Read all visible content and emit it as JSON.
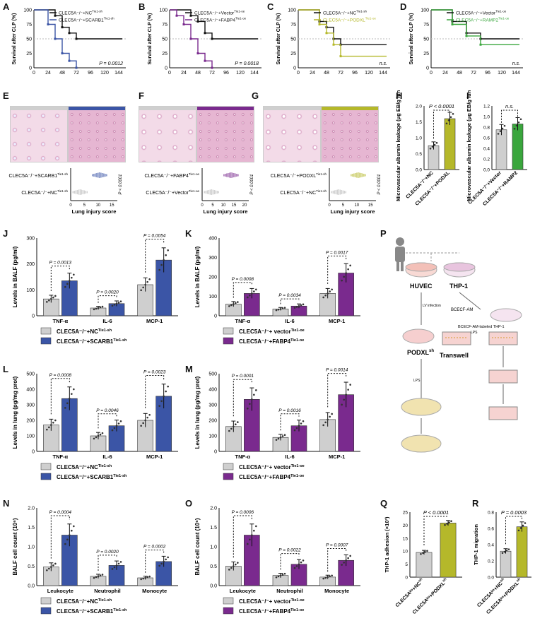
{
  "colors": {
    "gray": "#cfcfcf",
    "blue": "#3b55a6",
    "purple": "#7a2a8e",
    "olive": "#b5b82a",
    "green": "#3aa63d",
    "black": "#111111"
  },
  "panels": {
    "A": {
      "label": "A",
      "ylabel": "Survival after CLP (%)",
      "legend": [
        "CLEC5A⁻/⁻+NC",
        "CLEC5A⁻/⁻+SCARB1"
      ],
      "legend_sup": [
        "Tie1-sh",
        "Tie1-sh"
      ],
      "p": "P = 0.0012",
      "xticks": [
        "0",
        "24",
        "48",
        "72",
        "96",
        "120",
        "144"
      ],
      "yticks": [
        "0",
        "25",
        "50",
        "75",
        "100"
      ]
    },
    "B": {
      "label": "B",
      "ylabel": "Survival after CLP (%)",
      "legend": [
        "CLEC5A⁻/⁻+Vector",
        "CLEC5A⁻/⁻+FABP4"
      ],
      "legend_sup": [
        "Tie1-oe",
        "Tie1-oe"
      ],
      "p": "P = 0.0018",
      "xticks": [
        "0",
        "24",
        "48",
        "72",
        "96",
        "120",
        "144"
      ],
      "yticks": [
        "0",
        "25",
        "50",
        "75",
        "100"
      ]
    },
    "C": {
      "label": "C",
      "ylabel": "Survival after CLP (%)",
      "legend": [
        "CLEC5A⁻/⁻+NC",
        "CLEC5A⁻/⁻+PODXL"
      ],
      "legend_sup": [
        "Tie1-sh",
        "Tie1-oe"
      ],
      "p": "n.s.",
      "xticks": [
        "0",
        "24",
        "48",
        "72",
        "96",
        "120",
        "144"
      ],
      "yticks": [
        "0",
        "25",
        "50",
        "75",
        "100"
      ]
    },
    "D": {
      "label": "D",
      "ylabel": "Survival after CLP (%)",
      "legend": [
        "CLEC5A⁻/⁻+Vector",
        "CLEC5A⁻/⁻+RAMP2"
      ],
      "legend_sup": [
        "Tie1-oe",
        "Tie1-oe"
      ],
      "p": "n.s.",
      "xticks": [
        "0",
        "24",
        "48",
        "72",
        "96",
        "120",
        "144"
      ],
      "yticks": [
        "0",
        "25",
        "50",
        "75",
        "100"
      ]
    },
    "E": {
      "label": "E",
      "rows": [
        "CLEC5A⁻/⁻+SCARB1",
        "CLEC5A⁻/⁻+NC"
      ],
      "sups": [
        "Tie1-sh",
        "Tie1-sh"
      ],
      "xlabel": "Lung injury score",
      "p": "P < 0.0001",
      "xticks": [
        "0",
        "5",
        "10",
        "15"
      ]
    },
    "F": {
      "label": "F",
      "rows": [
        "CLEC5A⁻/⁻+FABP4",
        "CLEC5A⁻/⁻+Vector"
      ],
      "sups": [
        "Tie1-oe",
        "Tie1-oe"
      ],
      "xlabel": "Lung injury score",
      "p": "P < 0.0001",
      "xticks": [
        "0",
        "5",
        "10",
        "15",
        "20"
      ]
    },
    "G": {
      "label": "G",
      "rows": [
        "CLEC5A⁻/⁻+PODXL",
        "CLEC5A⁻/⁻+NC"
      ],
      "sups": [
        "Tie1-sh",
        "Tie1-sh"
      ],
      "xlabel": "Lung injury score",
      "p": "P < 0.0001",
      "xticks": [
        "0",
        "5",
        "10",
        "15"
      ]
    },
    "H": {
      "label": "H",
      "ylabel": "Microvascular albumin leakage (μg EB/g lung/min)",
      "p": "P < 0.0001",
      "xcats": [
        "CLEC5A⁻/⁻+NC",
        "CLEC5A⁻/⁻+PODXL"
      ],
      "yticks": [
        "0.0",
        "0.5",
        "1.0",
        "1.5",
        "2.0"
      ]
    },
    "I": {
      "label": "I",
      "ylabel": "Microvascular albumin leakage (μg EB/g lung/min)",
      "p": "n.s.",
      "xcats": [
        "CLEC5A⁻/⁻+Vector",
        "CLEC5A⁻/⁻+RAMP2"
      ],
      "yticks": [
        "0.0",
        "0.2",
        "0.4",
        "0.6",
        "0.8",
        "1.0",
        "1.2"
      ]
    },
    "J": {
      "label": "J",
      "ylabel": "Levels in BALF (pg/ml)",
      "yticks": [
        "0",
        "100",
        "200",
        "300"
      ],
      "cats": [
        "TNF-α",
        "IL-6",
        "MCP-1"
      ],
      "ps": [
        "P = 0.0013",
        "P = 0.0020",
        "P = 0.0054"
      ],
      "legend": [
        "CLEC5A⁻/⁻+NC",
        "CLEC5A⁻/⁻+SCARB1"
      ],
      "legend_sup": [
        "Tie1-sh",
        "Tie1-sh"
      ]
    },
    "K": {
      "label": "K",
      "ylabel": "Levels in BALF (pg/ml)",
      "yticks": [
        "0",
        "100",
        "200",
        "300",
        "400"
      ],
      "cats": [
        "TNF-α",
        "IL-6",
        "MCP-1"
      ],
      "ps": [
        "P = 0.0008",
        "P = 0.0034",
        "P = 0.0017"
      ],
      "legend": [
        "CLEC5A⁻/⁻+ vector",
        "CLEC5A⁻/⁻+FABP4"
      ],
      "legend_sup": [
        "Tie1-oe",
        "Tie1-oe"
      ]
    },
    "L": {
      "label": "L",
      "ylabel": "Levels in lung (pg/mg prot)",
      "yticks": [
        "0",
        "100",
        "200",
        "300",
        "400",
        "500"
      ],
      "cats": [
        "TNF-α",
        "IL-6",
        "MCP-1"
      ],
      "ps": [
        "P = 0.0008",
        "P = 0.0046",
        "P = 0.0023"
      ],
      "legend": [
        "CLEC5A⁻/⁻+NC",
        "CLEC5A⁻/⁻+SCARB1"
      ],
      "legend_sup": [
        "Tie1-sh",
        "Tie1-sh"
      ]
    },
    "M": {
      "label": "M",
      "ylabel": "Levels in lung (pg/mg prot)",
      "yticks": [
        "0",
        "100",
        "200",
        "300",
        "400",
        "500"
      ],
      "cats": [
        "TNF-α",
        "IL-6",
        "MCP-1"
      ],
      "ps": [
        "P = 0.0001",
        "P = 0.0016",
        "P = 0.0014"
      ],
      "legend": [
        "CLEC5A⁻/⁻+ vector",
        "CLEC5A⁻/⁻+FABP4"
      ],
      "legend_sup": [
        "Tie1-oe",
        "Tie1-oe"
      ]
    },
    "N": {
      "label": "N",
      "ylabel": "BALF cell count (10⁶)",
      "yticks": [
        "0.0",
        "0.5",
        "1.0",
        "1.5",
        "2.0"
      ],
      "cats": [
        "Leukocyte",
        "Neutrophil",
        "Monocyte"
      ],
      "ps": [
        "P = 0.0004",
        "P = 0.0020",
        "P = 0.0002"
      ],
      "legend": [
        "CLEC5A⁻/⁻+NC",
        "CLEC5A⁻/⁻+SCARB1"
      ],
      "legend_sup": [
        "Tie1-sh",
        "Tie1-sh"
      ]
    },
    "O": {
      "label": "O",
      "ylabel": "BALF cell count (10⁶)",
      "yticks": [
        "0.0",
        "0.5",
        "1.0",
        "1.5",
        "2.0"
      ],
      "cats": [
        "Leukocyte",
        "Neutrophil",
        "Monocyte"
      ],
      "ps": [
        "P = 0.0006",
        "P = 0.0022",
        "P = 0.0007"
      ],
      "legend": [
        "CLEC5A⁻/⁻+ vector",
        "CLEC5A⁻/⁻+FABP4"
      ],
      "legend_sup": [
        "Tie1-oe",
        "Tie1-oe"
      ]
    },
    "P": {
      "label": "P",
      "huvec": "HUVEC",
      "thp1": "THP-1",
      "lv": "LV infection",
      "bcecf": "BCECF-AM",
      "bcecf_labeled": "BCECF-AM-labeled THP-1",
      "podxl": "PODXL",
      "podxl_sup": "sh",
      "transwell": "Transwell",
      "lps": "LPS"
    },
    "Q": {
      "label": "Q",
      "ylabel": "THP-1 adhesion (×10³)",
      "p": "P < 0.0001",
      "yticks": [
        "0",
        "5",
        "10",
        "15",
        "20",
        "25"
      ],
      "xcats": [
        "CLEC5Aᵏᵒ+NC",
        "CLEC5Aᵏᵒ+PODXL"
      ],
      "xsup": "sh"
    },
    "R": {
      "label": "R",
      "ylabel": "THP-1 migration",
      "p": "P = 0.0003",
      "yticks": [
        "0.0",
        "0.2",
        "0.4",
        "0.6",
        "0.8"
      ],
      "xcats": [
        "CLEC5Aᵏᵒ+NC",
        "CLEC5Aᵏᵒ+PODXL"
      ],
      "xsup": "sh"
    }
  },
  "chart_data": [
    {
      "type": "line",
      "panel": "A",
      "title": "",
      "xlabel": "",
      "ylabel": "Survival after CLP (%)",
      "xlim": [
        0,
        156
      ],
      "ylim": [
        0,
        100
      ],
      "series": [
        {
          "name": "CLEC5A-/-+NC Tie1-sh",
          "color": "#111111",
          "x": [
            0,
            36,
            36,
            48,
            48,
            60,
            60,
            72,
            72,
            150
          ],
          "y": [
            100,
            100,
            90,
            90,
            70,
            70,
            60,
            60,
            50,
            50
          ]
        },
        {
          "name": "CLEC5A-/-+SCARB1 Tie1-sh",
          "color": "#3b55a6",
          "x": [
            0,
            24,
            24,
            36,
            36,
            48,
            48,
            60,
            60,
            72,
            72
          ],
          "y": [
            100,
            100,
            75,
            75,
            50,
            50,
            25,
            25,
            12,
            12,
            0
          ]
        }
      ],
      "p": "P = 0.0012"
    },
    {
      "type": "line",
      "panel": "B",
      "title": "",
      "xlabel": "",
      "ylabel": "Survival after CLP (%)",
      "xlim": [
        0,
        156
      ],
      "ylim": [
        0,
        100
      ],
      "series": [
        {
          "name": "CLEC5A-/-+Vector Tie1-oe",
          "color": "#111111",
          "x": [
            0,
            36,
            36,
            48,
            48,
            60,
            60,
            72,
            72,
            150
          ],
          "y": [
            100,
            100,
            90,
            90,
            80,
            80,
            60,
            60,
            50,
            50
          ]
        },
        {
          "name": "CLEC5A-/-+FABP4 Tie1-oe",
          "color": "#7a2a8e",
          "x": [
            0,
            12,
            12,
            24,
            24,
            36,
            36,
            48,
            48,
            60,
            60,
            72,
            72
          ],
          "y": [
            100,
            100,
            90,
            90,
            75,
            75,
            50,
            50,
            25,
            25,
            12,
            12,
            0
          ]
        }
      ],
      "p": "P = 0.0018"
    },
    {
      "type": "line",
      "panel": "C",
      "title": "",
      "xlabel": "",
      "ylabel": "Survival after CLP (%)",
      "xlim": [
        0,
        156
      ],
      "ylim": [
        0,
        100
      ],
      "series": [
        {
          "name": "CLEC5A-/-+NC Tie1-sh",
          "color": "#111111",
          "x": [
            0,
            36,
            36,
            48,
            48,
            60,
            60,
            72,
            72,
            150
          ],
          "y": [
            100,
            100,
            80,
            80,
            70,
            70,
            50,
            50,
            40,
            40
          ]
        },
        {
          "name": "CLEC5A-/-+PODXL Tie1-oe",
          "color": "#b5b82a",
          "x": [
            0,
            36,
            36,
            48,
            48,
            60,
            60,
            72,
            72,
            150
          ],
          "y": [
            100,
            100,
            75,
            75,
            60,
            60,
            40,
            40,
            20,
            20
          ]
        }
      ],
      "p": "n.s."
    },
    {
      "type": "line",
      "panel": "D",
      "title": "",
      "xlabel": "",
      "ylabel": "Survival after CLP (%)",
      "xlim": [
        0,
        156
      ],
      "ylim": [
        0,
        100
      ],
      "series": [
        {
          "name": "CLEC5A-/-+Vector Tie1-oe",
          "color": "#111111",
          "x": [
            0,
            36,
            36,
            60,
            60,
            84,
            84,
            150
          ],
          "y": [
            100,
            100,
            80,
            80,
            60,
            60,
            50,
            50
          ]
        },
        {
          "name": "CLEC5A-/-+RAMP2 Tie1-oe",
          "color": "#3aa63d",
          "x": [
            0,
            36,
            36,
            60,
            60,
            84,
            84,
            150
          ],
          "y": [
            100,
            100,
            75,
            75,
            55,
            55,
            40,
            40
          ]
        }
      ],
      "p": "n.s."
    },
    {
      "type": "bar",
      "panel": "H",
      "categories": [
        "NC",
        "PODXL"
      ],
      "values": [
        0.75,
        1.6
      ],
      "errors": [
        0.12,
        0.2
      ],
      "colors": [
        "#cfcfcf",
        "#b5b82a"
      ],
      "ylim": [
        0,
        2
      ]
    },
    {
      "type": "bar",
      "panel": "I",
      "categories": [
        "Vector",
        "RAMP2"
      ],
      "values": [
        0.75,
        0.86
      ],
      "errors": [
        0.1,
        0.12
      ],
      "colors": [
        "#cfcfcf",
        "#3aa63d"
      ],
      "ylim": [
        0,
        1.2
      ]
    },
    {
      "type": "bar",
      "panel": "J",
      "categories": [
        "TNF-α",
        "IL-6",
        "MCP-1"
      ],
      "series": [
        {
          "name": "NC",
          "values": [
            65,
            30,
            120
          ],
          "color": "#cfcfcf"
        },
        {
          "name": "SCARB1",
          "values": [
            135,
            47,
            215
          ],
          "color": "#3b55a6"
        }
      ],
      "ylim": [
        0,
        300
      ]
    },
    {
      "type": "bar",
      "panel": "K",
      "categories": [
        "TNF-α",
        "IL-6",
        "MCP-1"
      ],
      "series": [
        {
          "name": "vector",
          "values": [
            60,
            35,
            115
          ],
          "color": "#cfcfcf"
        },
        {
          "name": "FABP4",
          "values": [
            115,
            50,
            220
          ],
          "color": "#7a2a8e"
        }
      ],
      "ylim": [
        0,
        400
      ]
    },
    {
      "type": "bar",
      "panel": "L",
      "categories": [
        "TNF-α",
        "IL-6",
        "MCP-1"
      ],
      "series": [
        {
          "name": "NC",
          "values": [
            170,
            100,
            200
          ],
          "color": "#cfcfcf"
        },
        {
          "name": "SCARB1",
          "values": [
            340,
            165,
            355
          ],
          "color": "#3b55a6"
        }
      ],
      "ylim": [
        0,
        500
      ]
    },
    {
      "type": "bar",
      "panel": "M",
      "categories": [
        "TNF-α",
        "IL-6",
        "MCP-1"
      ],
      "series": [
        {
          "name": "vector",
          "values": [
            160,
            90,
            205
          ],
          "color": "#cfcfcf"
        },
        {
          "name": "FABP4",
          "values": [
            335,
            165,
            365
          ],
          "color": "#7a2a8e"
        }
      ],
      "ylim": [
        0,
        500
      ]
    },
    {
      "type": "bar",
      "panel": "N",
      "categories": [
        "Leukocyte",
        "Neutrophil",
        "Monocyte"
      ],
      "series": [
        {
          "name": "NC",
          "values": [
            0.48,
            0.24,
            0.2
          ],
          "color": "#cfcfcf"
        },
        {
          "name": "SCARB1",
          "values": [
            1.3,
            0.52,
            0.62
          ],
          "color": "#3b55a6"
        }
      ],
      "ylim": [
        0,
        2
      ]
    },
    {
      "type": "bar",
      "panel": "O",
      "categories": [
        "Leukocyte",
        "Neutrophil",
        "Monocyte"
      ],
      "series": [
        {
          "name": "vector",
          "values": [
            0.5,
            0.26,
            0.22
          ],
          "color": "#cfcfcf"
        },
        {
          "name": "FABP4",
          "values": [
            1.3,
            0.55,
            0.65
          ],
          "color": "#7a2a8e"
        }
      ],
      "ylim": [
        0,
        2
      ]
    },
    {
      "type": "bar",
      "panel": "Q",
      "categories": [
        "NC",
        "PODXL"
      ],
      "values": [
        9.5,
        20.8
      ],
      "errors": [
        0.8,
        1.0
      ],
      "colors": [
        "#cfcfcf",
        "#b5b82a"
      ],
      "ylim": [
        0,
        25
      ]
    },
    {
      "type": "bar",
      "panel": "R",
      "categories": [
        "NC",
        "PODXL"
      ],
      "values": [
        0.32,
        0.62
      ],
      "errors": [
        0.03,
        0.06
      ],
      "colors": [
        "#cfcfcf",
        "#b5b82a"
      ],
      "ylim": [
        0,
        0.8
      ]
    }
  ]
}
